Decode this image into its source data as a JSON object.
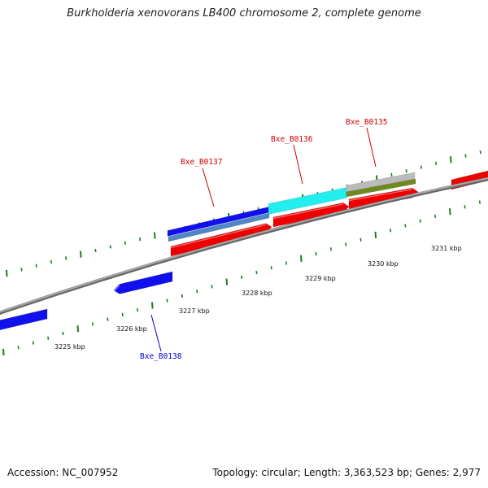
{
  "title": "Burkholderia xenovorans LB400 chromosome 2, complete genome",
  "footer": {
    "accession": "Accession: NC_007952",
    "topology": "Topology: circular; Length: 3,363,523 bp; Genes: 2,977"
  },
  "colors": {
    "backbone": "#8a8a8a",
    "forward_cds": "#ee0000",
    "reverse_cds": "#1010ee",
    "tick": "#1e7a1e",
    "forward_label": "#cc0000",
    "reverse_label": "#0000cc",
    "highlight_cyan": "#22eeee",
    "highlight_gray": "#bbbbbb",
    "highlight_olive": "#6e8a1e",
    "highlight_steel": "#4f86c6"
  },
  "kbp_labels": [
    {
      "text": "3225 kbp"
    },
    {
      "text": "3226 kbp"
    },
    {
      "text": "3227 kbp"
    },
    {
      "text": "3228 kbp"
    },
    {
      "text": "3229 kbp"
    },
    {
      "text": "3230 kbp"
    },
    {
      "text": "3231 kbp"
    }
  ],
  "gene_labels": [
    {
      "text": "Bxe_B0137",
      "strand": "forward"
    },
    {
      "text": "Bxe_B0136",
      "strand": "forward"
    },
    {
      "text": "Bxe_B0135",
      "strand": "forward"
    },
    {
      "text": "Bxe_B0138",
      "strand": "reverse"
    }
  ]
}
